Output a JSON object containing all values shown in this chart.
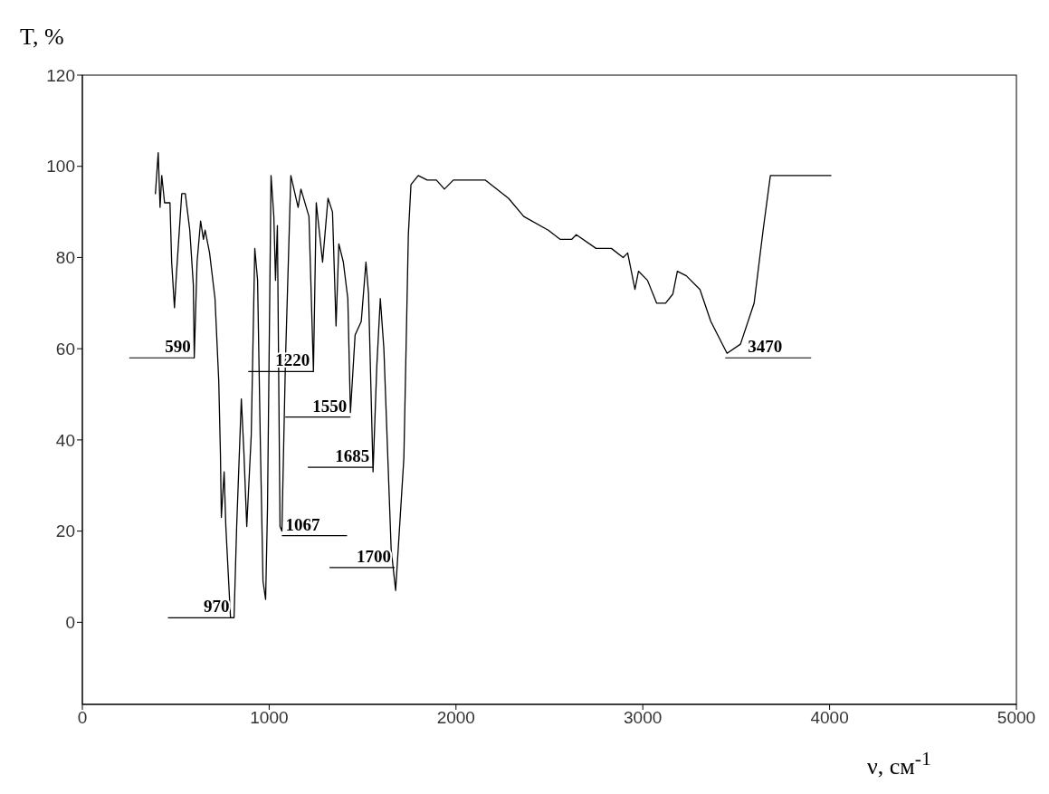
{
  "chart_data": {
    "type": "line",
    "xlabel": "ν, см$^{-1}$",
    "ylabel": "T, %",
    "xlim": [
      0,
      5000
    ],
    "xticks": [
      0,
      1000,
      2000,
      3000,
      4000,
      5000
    ],
    "ylim": [
      -18,
      120
    ],
    "yticks": [
      0,
      20,
      40,
      60,
      80,
      100,
      120
    ],
    "marker": "none",
    "line_style": "solid",
    "x": [
      391,
      406,
      416,
      425,
      440,
      469,
      478,
      493,
      503,
      532,
      551,
      575,
      594,
      599,
      614,
      633,
      648,
      657,
      681,
      710,
      730,
      739,
      744,
      759,
      768,
      793,
      812,
      826,
      851,
      865,
      880,
      904,
      923,
      938,
      952,
      967,
      981,
      991,
      1010,
      1025,
      1034,
      1044,
      1058,
      1068,
      1087,
      1116,
      1155,
      1170,
      1213,
      1237,
      1252,
      1286,
      1315,
      1339,
      1358,
      1373,
      1397,
      1421,
      1435,
      1460,
      1493,
      1518,
      1532,
      1556,
      1576,
      1595,
      1614,
      1653,
      1677,
      1721,
      1745,
      1759,
      1798,
      1846,
      1895,
      1938,
      1986,
      2083,
      2156,
      2281,
      2363,
      2494,
      2557,
      2620,
      2644,
      2750,
      2832,
      2895,
      2919,
      2958,
      2977,
      3025,
      3074,
      3122,
      3161,
      3185,
      3233,
      3306,
      3364,
      3451,
      3523,
      3596,
      3644,
      3683,
      3847,
      4007
    ],
    "series": [
      {
        "color": "#000000",
        "values": [
          94,
          103,
          91,
          98,
          92,
          92,
          79,
          69,
          76,
          94,
          94,
          86,
          74,
          58,
          79,
          88,
          84,
          86,
          81,
          71,
          53,
          37,
          23,
          33,
          21,
          1,
          1,
          21,
          49,
          37,
          21,
          41,
          82,
          75,
          41,
          9,
          5,
          25,
          98,
          89,
          75,
          87,
          21,
          20,
          57,
          98,
          91,
          95,
          89,
          55,
          92,
          79,
          93,
          90,
          65,
          83,
          79,
          71,
          46,
          63,
          66,
          79,
          72,
          33,
          56,
          71,
          60,
          16,
          7,
          36,
          85,
          96,
          98,
          97,
          97,
          95,
          97,
          97,
          97,
          93,
          89,
          86,
          84,
          84,
          85,
          82,
          82,
          80,
          81,
          73,
          77,
          75,
          70,
          70,
          72,
          77,
          76,
          73,
          66,
          59,
          61,
          70,
          86,
          98,
          98,
          98
        ]
      }
    ],
    "annotations": [
      {
        "text": "590",
        "x": 600,
        "y": 58
      },
      {
        "text": "970",
        "x": 807,
        "y": 1
      },
      {
        "text": "1067",
        "x": 1068,
        "y": 19
      },
      {
        "text": "1220",
        "x": 1237,
        "y": 55
      },
      {
        "text": "1550",
        "x": 1435,
        "y": 45
      },
      {
        "text": "1685",
        "x": 1556,
        "y": 34
      },
      {
        "text": "1700",
        "x": 1672,
        "y": 12
      },
      {
        "text": "3470",
        "x": 3441,
        "y": 58
      }
    ]
  }
}
